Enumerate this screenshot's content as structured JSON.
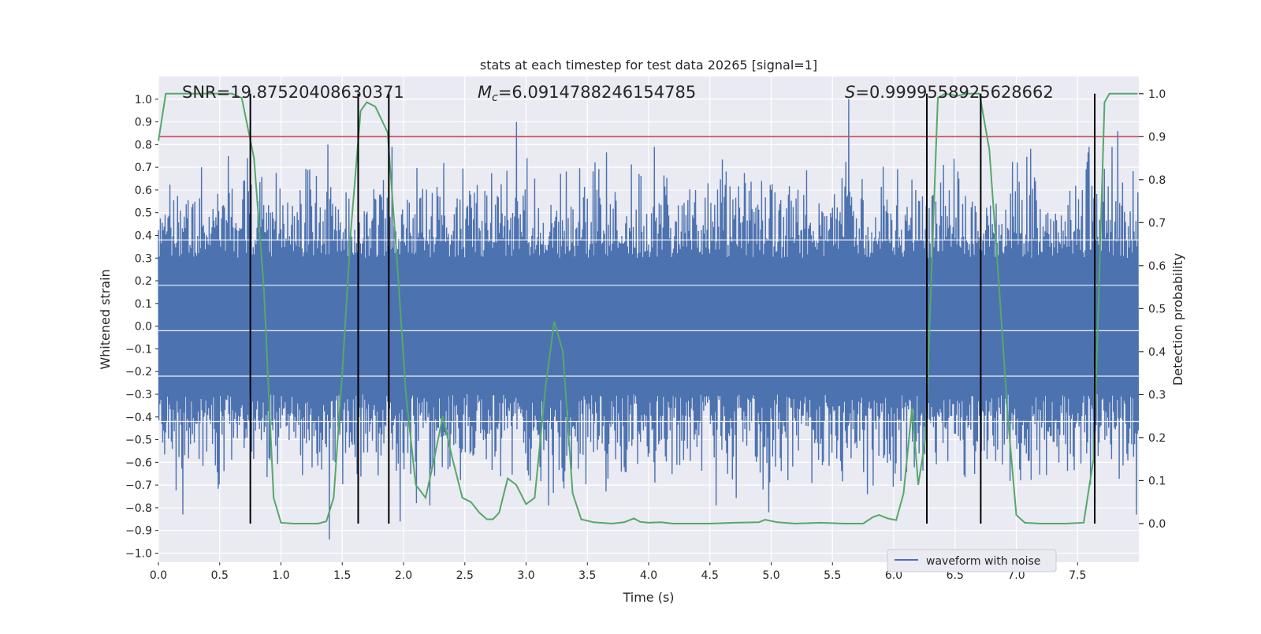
{
  "chart_data": {
    "type": "line",
    "title": "stats at each timestep for test data 20265 [signal=1]",
    "xlabel": "Time (s)",
    "ylabel_left": "Whitened strain",
    "ylabel_right": "Detection probability",
    "xlim": [
      0.0,
      8.0
    ],
    "ylim_left": [
      -1.04,
      1.1
    ],
    "ylim_right": [
      -0.09,
      1.04
    ],
    "x_ticks": [
      0.0,
      0.5,
      1.0,
      1.5,
      2.0,
      2.5,
      3.0,
      3.5,
      4.0,
      4.5,
      5.0,
      5.5,
      6.0,
      6.5,
      7.0,
      7.5
    ],
    "x_tick_labels": [
      "0.0",
      "0.5",
      "1.0",
      "1.5",
      "2.0",
      "2.5",
      "3.0",
      "3.5",
      "4.0",
      "4.5",
      "5.0",
      "5.5",
      "6.0",
      "6.5",
      "7.0",
      "7.5"
    ],
    "y_left_ticks": [
      1.0,
      0.9,
      0.8,
      0.7,
      0.6,
      0.5,
      0.4,
      0.3,
      0.2,
      0.1,
      0.0,
      -0.1,
      -0.2,
      -0.3,
      -0.4,
      -0.5,
      -0.6,
      -0.7,
      -0.8,
      -0.9,
      -1.0
    ],
    "y_left_tick_labels": [
      "1.0",
      "0.9",
      "0.8",
      "0.7",
      "0.6",
      "0.5",
      "0.4",
      "0.3",
      "0.2",
      "0.1",
      "0.0",
      "−0.1",
      "−0.2",
      "−0.3",
      "−0.4",
      "−0.5",
      "−0.6",
      "−0.7",
      "−0.8",
      "−0.9",
      "−1.0"
    ],
    "y_right_ticks": [
      1.0,
      0.9,
      0.8,
      0.7,
      0.6,
      0.5,
      0.4,
      0.3,
      0.2,
      0.1,
      0.0
    ],
    "y_right_tick_labels": [
      "1.0",
      "0.9",
      "0.8",
      "0.7",
      "0.6",
      "0.5",
      "0.4",
      "0.3",
      "0.2",
      "0.1",
      "0.0"
    ],
    "grid": true,
    "annotations": {
      "snr": "SNR=19.87520408630371",
      "mc_symbol": "M",
      "mc_sub": "c",
      "mc_value": "=6.0914788246154785",
      "s_symbol": "S",
      "s_value": "=0.9999558925628662"
    },
    "threshold_probability": 0.9,
    "vertical_markers_s": [
      0.75,
      1.63,
      1.88,
      6.27,
      6.71,
      7.64
    ],
    "waveform": {
      "name": "waveform with noise",
      "color": "#4c72b0",
      "sample_rate_hz": 256,
      "duration_s": 8.0,
      "amplitude": 0.5,
      "peaks": [
        {
          "t": 0.35,
          "v": 0.7
        },
        {
          "t": 1.38,
          "v": 0.8
        },
        {
          "t": 1.39,
          "v": -0.94
        },
        {
          "t": 2.92,
          "v": 0.9
        },
        {
          "t": 5.63,
          "v": 1.0
        },
        {
          "t": 7.83,
          "v": 0.86
        },
        {
          "t": 1.97,
          "v": -0.86
        },
        {
          "t": 0.2,
          "v": -0.83
        },
        {
          "t": 4.55,
          "v": -0.79
        },
        {
          "t": 4.98,
          "v": -0.82
        },
        {
          "t": 7.98,
          "v": -0.83
        }
      ]
    },
    "detection_probability": {
      "color": "#55a868",
      "points": [
        [
          0.0,
          0.89
        ],
        [
          0.06,
          1.0
        ],
        [
          0.15,
          1.0
        ],
        [
          0.3,
          1.0
        ],
        [
          0.45,
          1.0
        ],
        [
          0.6,
          1.0
        ],
        [
          0.68,
          0.99
        ],
        [
          0.78,
          0.85
        ],
        [
          0.86,
          0.55
        ],
        [
          0.94,
          0.06
        ],
        [
          1.0,
          0.002
        ],
        [
          1.1,
          0.0
        ],
        [
          1.2,
          0.0
        ],
        [
          1.3,
          0.0
        ],
        [
          1.37,
          0.005
        ],
        [
          1.43,
          0.06
        ],
        [
          1.5,
          0.35
        ],
        [
          1.57,
          0.68
        ],
        [
          1.65,
          0.96
        ],
        [
          1.7,
          0.98
        ],
        [
          1.77,
          0.97
        ],
        [
          1.87,
          0.91
        ],
        [
          1.95,
          0.6
        ],
        [
          2.02,
          0.3
        ],
        [
          2.1,
          0.09
        ],
        [
          2.18,
          0.06
        ],
        [
          2.25,
          0.15
        ],
        [
          2.32,
          0.25
        ],
        [
          2.4,
          0.15
        ],
        [
          2.48,
          0.06
        ],
        [
          2.55,
          0.05
        ],
        [
          2.62,
          0.025
        ],
        [
          2.68,
          0.01
        ],
        [
          2.73,
          0.01
        ],
        [
          2.78,
          0.025
        ],
        [
          2.85,
          0.105
        ],
        [
          2.92,
          0.09
        ],
        [
          3.0,
          0.045
        ],
        [
          3.07,
          0.06
        ],
        [
          3.16,
          0.32
        ],
        [
          3.23,
          0.47
        ],
        [
          3.3,
          0.4
        ],
        [
          3.38,
          0.07
        ],
        [
          3.45,
          0.01
        ],
        [
          3.55,
          0.003
        ],
        [
          3.7,
          0.0
        ],
        [
          3.8,
          0.003
        ],
        [
          3.88,
          0.012
        ],
        [
          3.93,
          0.004
        ],
        [
          4.0,
          0.002
        ],
        [
          4.1,
          0.003
        ],
        [
          4.2,
          0.0
        ],
        [
          4.5,
          0.0
        ],
        [
          4.7,
          0.002
        ],
        [
          4.9,
          0.003
        ],
        [
          4.95,
          0.009
        ],
        [
          5.05,
          0.003
        ],
        [
          5.2,
          0.0
        ],
        [
          5.4,
          0.002
        ],
        [
          5.6,
          0.0
        ],
        [
          5.75,
          0.0
        ],
        [
          5.83,
          0.015
        ],
        [
          5.88,
          0.02
        ],
        [
          5.95,
          0.012
        ],
        [
          6.02,
          0.008
        ],
        [
          6.08,
          0.07
        ],
        [
          6.15,
          0.27
        ],
        [
          6.2,
          0.09
        ],
        [
          6.26,
          0.2
        ],
        [
          6.31,
          0.6
        ],
        [
          6.36,
          0.99
        ],
        [
          6.42,
          1.0
        ],
        [
          6.52,
          0.995
        ],
        [
          6.6,
          1.0
        ],
        [
          6.7,
          1.0
        ],
        [
          6.78,
          0.87
        ],
        [
          6.86,
          0.55
        ],
        [
          6.93,
          0.25
        ],
        [
          7.0,
          0.02
        ],
        [
          7.07,
          0.002
        ],
        [
          7.2,
          0.0
        ],
        [
          7.4,
          0.0
        ],
        [
          7.55,
          0.002
        ],
        [
          7.63,
          0.15
        ],
        [
          7.67,
          0.5
        ],
        [
          7.72,
          0.98
        ],
        [
          7.76,
          1.0
        ],
        [
          7.99,
          1.0
        ]
      ]
    },
    "legend": {
      "entries": [
        "waveform with noise"
      ],
      "placement": "lower-right"
    }
  }
}
